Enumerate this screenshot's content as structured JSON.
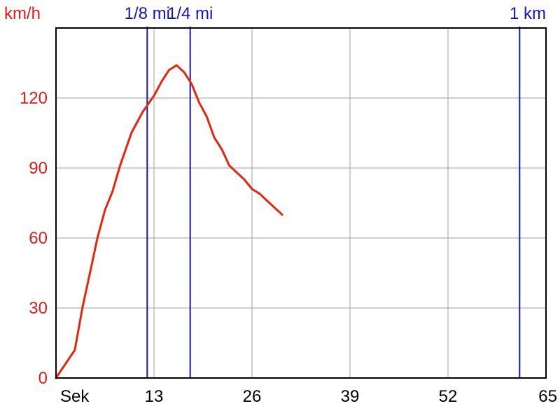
{
  "chart_data": {
    "type": "line",
    "ylabel": "km/h",
    "xlabel": "Sek",
    "xlim": [
      0,
      65
    ],
    "ylim": [
      0,
      150
    ],
    "x_ticks": [
      13,
      26,
      39,
      52,
      65
    ],
    "y_ticks": [
      0,
      30,
      60,
      90,
      120
    ],
    "grid": true,
    "series": [
      {
        "color": "#e8250c",
        "x": [
          0,
          2.5,
          3.5,
          4.5,
          5.5,
          6.5,
          7.5,
          8.5,
          10,
          11.5,
          13,
          14,
          15,
          16,
          17,
          18,
          19,
          20,
          21,
          22,
          23,
          24,
          25,
          26,
          27,
          28,
          29,
          30
        ],
        "y": [
          0,
          12,
          30,
          45,
          60,
          72,
          80,
          91,
          105,
          114,
          121,
          127,
          132,
          134,
          131,
          126,
          118,
          112,
          103,
          98,
          91,
          88,
          85,
          81,
          79,
          76,
          73,
          70
        ]
      }
    ],
    "markers": [
      {
        "label": "1/8 mi",
        "x": 12.1
      },
      {
        "label": "1/4 mi",
        "x": 17.8
      },
      {
        "label": "1 km",
        "x": 61.5
      }
    ],
    "colors": {
      "speed_line": "#e8250c",
      "y_axis_text": "#e01b1b",
      "markers": "#1414c8",
      "grid": "#a0a0a0",
      "frame": "#000000"
    }
  }
}
